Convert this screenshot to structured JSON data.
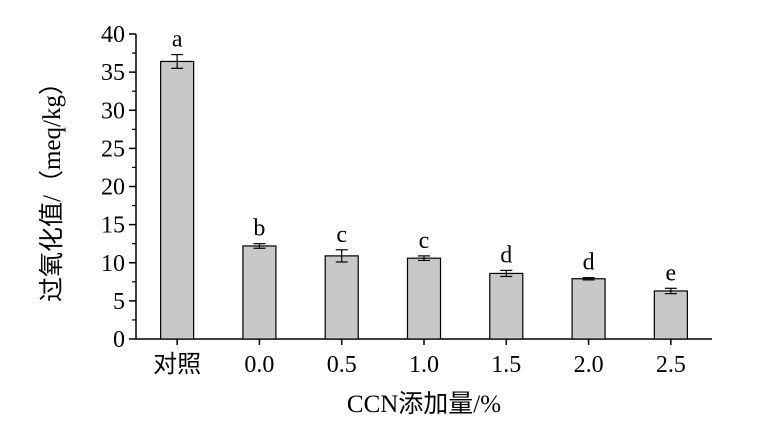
{
  "chart_data": {
    "type": "bar",
    "xlabel": "CCN添加量/%",
    "ylabel": "过氧化值/（meq/kg）",
    "categories": [
      "对照",
      "0.0",
      "0.5",
      "1.0",
      "1.5",
      "2.0",
      "2.5"
    ],
    "values": [
      36.4,
      12.2,
      10.9,
      10.6,
      8.6,
      7.9,
      6.3
    ],
    "errors": [
      0.9,
      0.3,
      0.8,
      0.3,
      0.4,
      0.15,
      0.35
    ],
    "significance_letters": [
      "a",
      "b",
      "c",
      "c",
      "d",
      "d",
      "e"
    ],
    "ylim": [
      0,
      40
    ],
    "yticks": [
      0,
      5,
      10,
      15,
      20,
      25,
      30,
      35,
      40
    ],
    "grid": false,
    "legend": "none",
    "colors": {
      "bar_fill": "#c8c8c8",
      "bar_stroke": "#000000",
      "axis": "#000000"
    }
  }
}
